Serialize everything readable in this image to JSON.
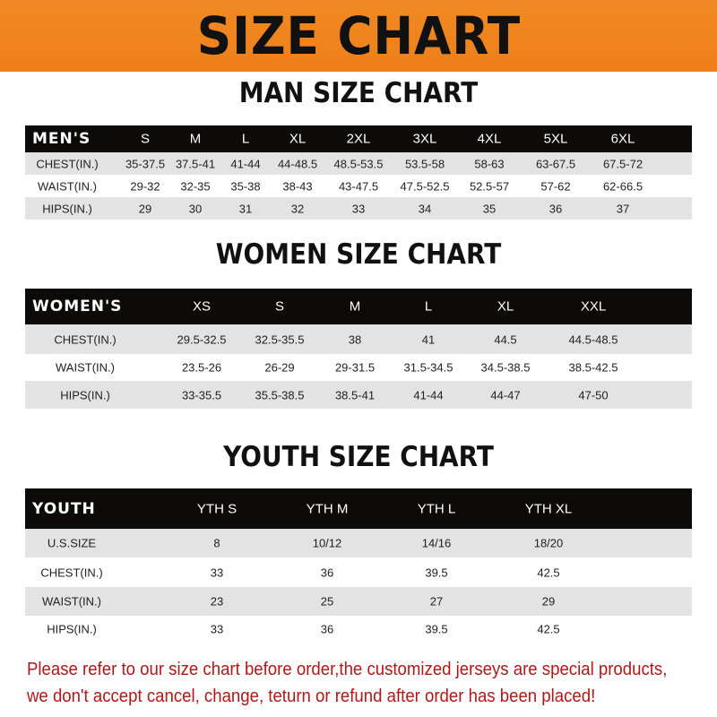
{
  "banner_title": "SIZE CHART",
  "men": {
    "title": "MAN SIZE CHART",
    "header": [
      "MEN'S",
      "S",
      "M",
      "L",
      "XL",
      "2XL",
      "3XL",
      "4XL",
      "5XL",
      "6XL"
    ],
    "rows": [
      [
        "CHEST(IN.)",
        "35-37.5",
        "37.5-41",
        "41-44",
        "44-48.5",
        "48.5-53.5",
        "53.5-58",
        "58-63",
        "63-67.5",
        "67.5-72"
      ],
      [
        "WAIST(IN.)",
        "29-32",
        "32-35",
        "35-38",
        "38-43",
        "43-47.5",
        "47.5-52.5",
        "52.5-57",
        "57-62",
        "62-66.5"
      ],
      [
        "HIPS(IN.)",
        "29",
        "30",
        "31",
        "32",
        "33",
        "34",
        "35",
        "36",
        "37"
      ]
    ]
  },
  "women": {
    "title": "WOMEN SIZE CHART",
    "header": [
      "WOMEN'S",
      "XS",
      "S",
      "M",
      "L",
      "XL",
      "XXL"
    ],
    "rows": [
      [
        "CHEST(IN.)",
        "29.5-32.5",
        "32.5-35.5",
        "38",
        "41",
        "44.5",
        "44.5-48.5"
      ],
      [
        "WAIST(IN.)",
        "23.5-26",
        "26-29",
        "29-31.5",
        "31.5-34.5",
        "34.5-38.5",
        "38.5-42.5"
      ],
      [
        "HIPS(IN.)",
        "33-35.5",
        "35.5-38.5",
        "38.5-41",
        "41-44",
        "44-47",
        "47-50"
      ]
    ]
  },
  "youth": {
    "title": "YOUTH SIZE CHART",
    "header": [
      "YOUTH",
      "YTH S",
      "YTH M",
      "YTH L",
      "YTH XL"
    ],
    "rows": [
      [
        "U.S.SIZE",
        "8",
        "10/12",
        "14/16",
        "18/20"
      ],
      [
        "CHEST(IN.)",
        "33",
        "36",
        "39.5",
        "42.5"
      ],
      [
        "WAIST(IN.)",
        "23",
        "25",
        "27",
        "29"
      ],
      [
        "HIPS(IN.)",
        "33",
        "36",
        "39.5",
        "42.5"
      ]
    ]
  },
  "notice": [
    "Please refer to our size chart before order,the customized jerseys are special products,",
    "we don't accept cancel, change, teturn or refund after order has been placed!"
  ],
  "colors": {
    "banner": "#ef8420",
    "header_row": "#0d0a0a",
    "stripe": "#e3e3e3",
    "notice": "#b01818"
  }
}
